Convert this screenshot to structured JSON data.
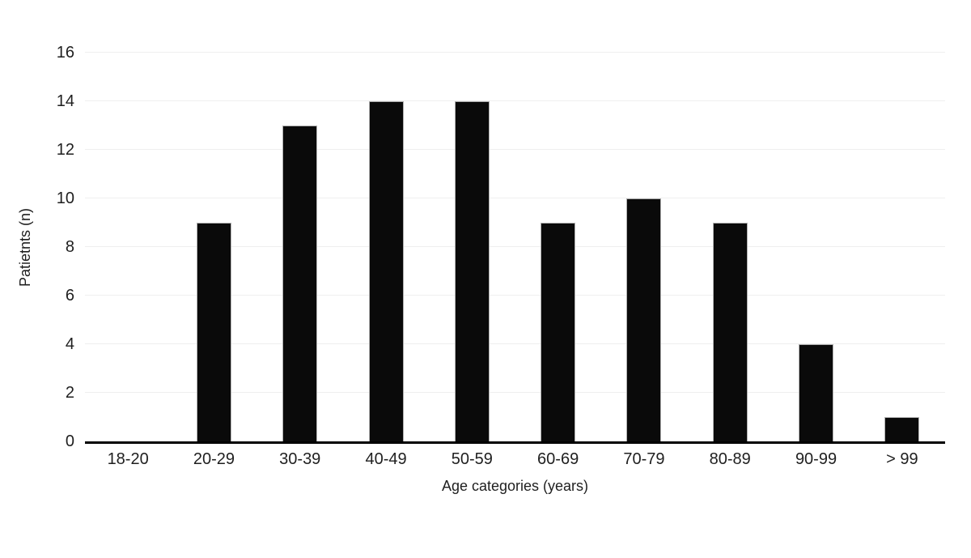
{
  "chart_data": {
    "type": "bar",
    "title": "",
    "categories": [
      "18-20",
      "20-29",
      "30-39",
      "40-49",
      "50-59",
      "60-69",
      "70-79",
      "80-89",
      "90-99",
      "> 99"
    ],
    "values": [
      0,
      9,
      13,
      14,
      14,
      9,
      10,
      9,
      4,
      1
    ],
    "xlabel": "Age categories (years)",
    "ylabel": "Patietnts (n)",
    "ylim": [
      0,
      16
    ],
    "ytick_step": 2,
    "grid": "horizontal",
    "legend": "none",
    "colors": {
      "bar_fill": "#0a0a0a",
      "bar_border": "#b0b0b0",
      "gridline": "#efefef",
      "axis_line": "#000000",
      "text": "#1f1f1f",
      "background": "#ffffff"
    }
  }
}
